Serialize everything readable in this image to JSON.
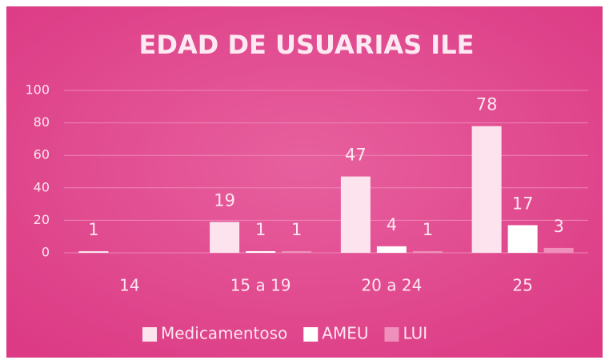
{
  "chart_data": {
    "type": "bar",
    "title": "EDAD DE USUARIAS ILE",
    "categories": [
      "14",
      "15 a 19",
      "20 a 24",
      "25"
    ],
    "series": [
      {
        "name": "Medicamentoso",
        "color": "#fce3ee",
        "values": [
          1,
          19,
          47,
          78
        ]
      },
      {
        "name": "AMEU",
        "color": "#ffffff",
        "values": [
          null,
          1,
          4,
          17
        ]
      },
      {
        "name": "LUI",
        "color": "#ef8fbb",
        "values": [
          null,
          1,
          1,
          3
        ]
      }
    ],
    "ylim": [
      0,
      100
    ],
    "yticks": [
      0,
      20,
      40,
      60,
      80,
      100
    ],
    "grid": true,
    "legend": "bottom"
  }
}
